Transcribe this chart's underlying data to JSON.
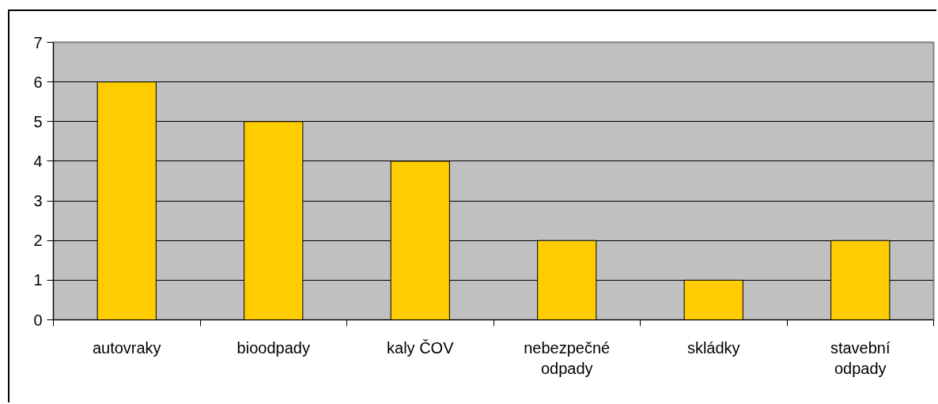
{
  "chart_data": {
    "type": "bar",
    "categories": [
      "autovraky",
      "bioodpady",
      "kaly ČOV",
      "nebezpečné odpady",
      "skládky",
      "stavební odpady"
    ],
    "values": [
      6,
      5,
      4,
      2,
      1,
      2
    ],
    "color": "#ffcc00",
    "ylim": [
      0,
      7
    ],
    "yticks": [
      0,
      1,
      2,
      3,
      4,
      5,
      6,
      7
    ],
    "grid": "y"
  }
}
